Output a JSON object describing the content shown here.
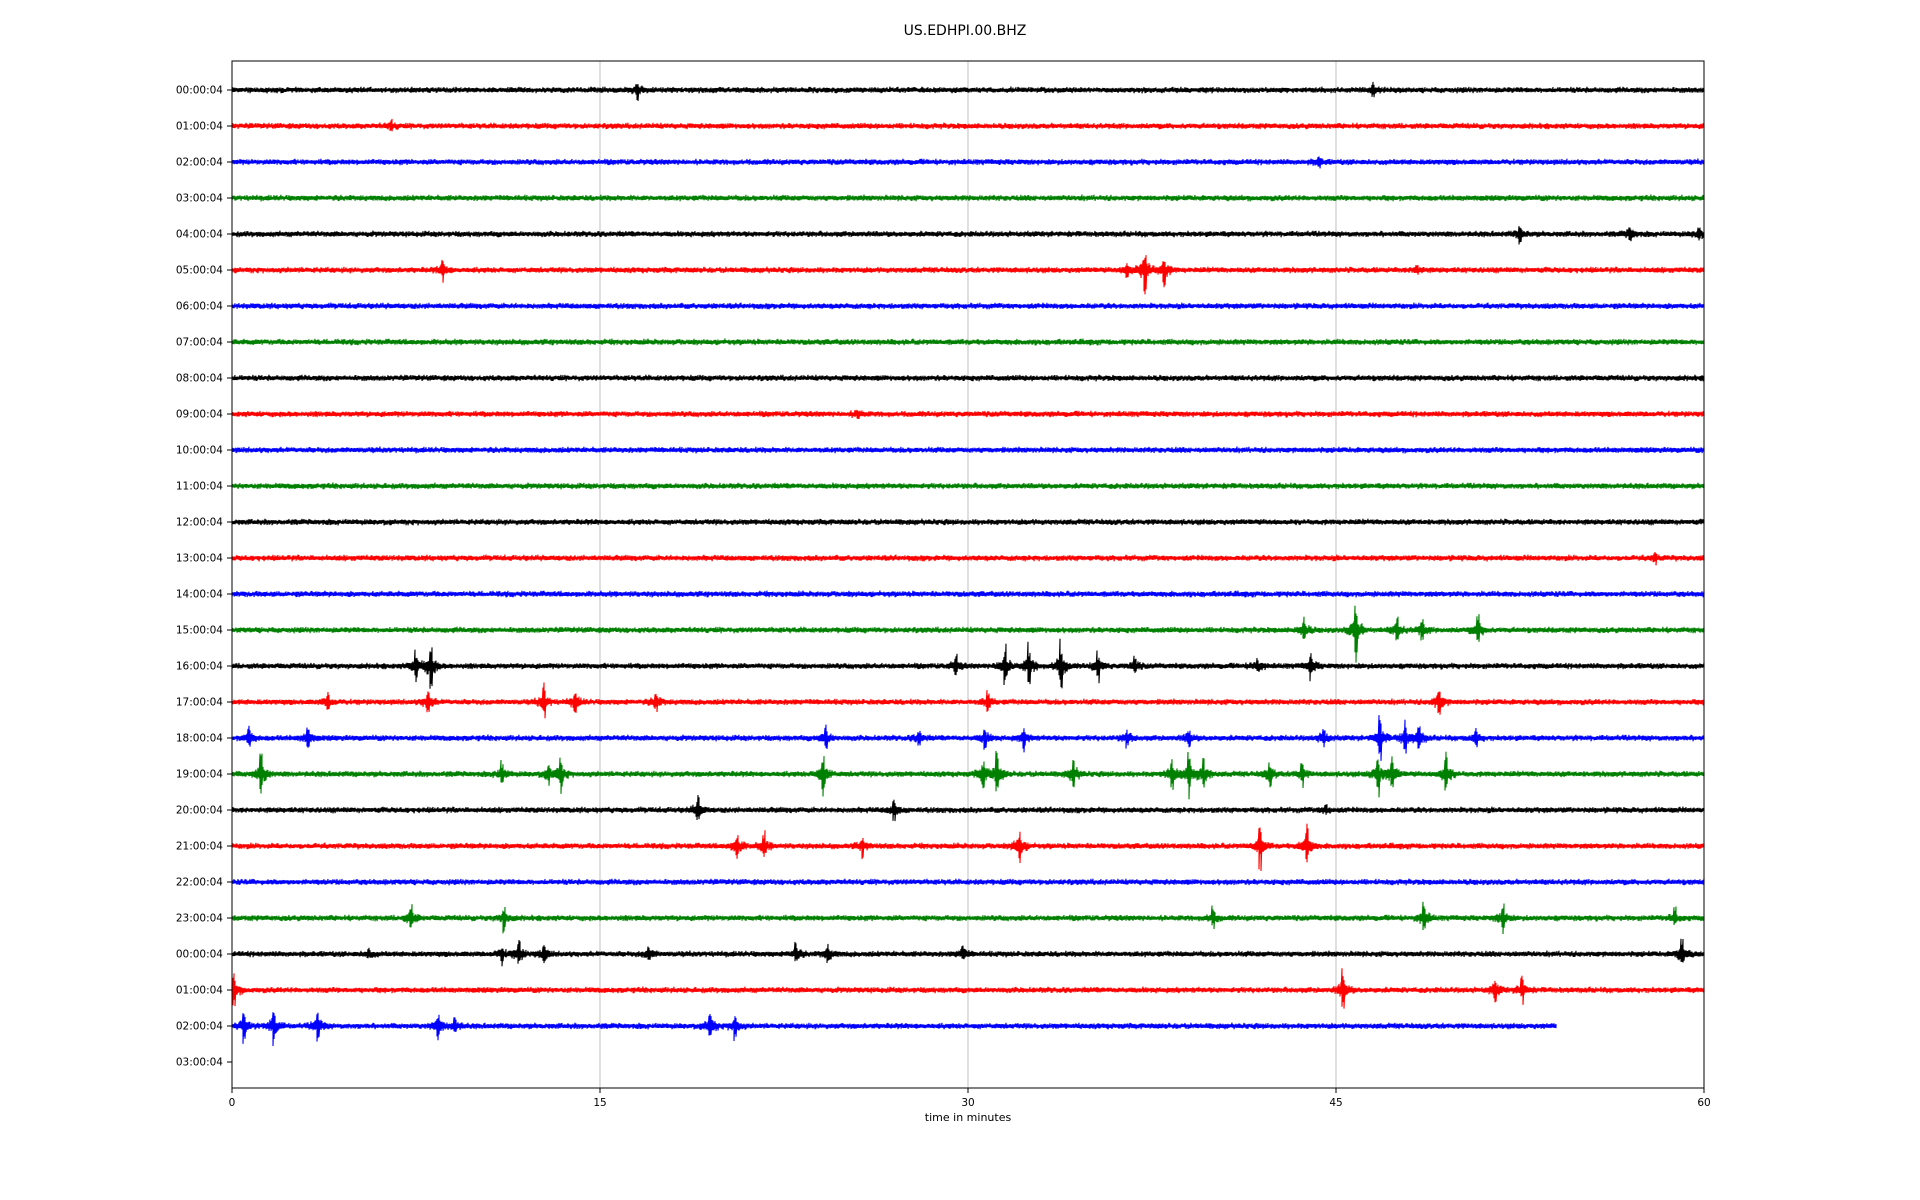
{
  "chart_data": {
    "type": "line",
    "title": "US.EDHPI.00.BHZ",
    "xlabel": "time in minutes",
    "ylabel": "",
    "xlim": [
      0,
      60
    ],
    "x_ticks": [
      "0",
      "15",
      "30",
      "45",
      "60"
    ],
    "x_tick_values": [
      0,
      15,
      30,
      45,
      60
    ],
    "grid": "vertical lines at x ticks",
    "legend": "none",
    "trace_colors": [
      "#000000",
      "#ff0000",
      "#0000ff",
      "#008000"
    ],
    "rows": [
      {
        "label": "00:00:04",
        "end_minute": 60,
        "events": [
          [
            16.5,
            0.5
          ],
          [
            46.5,
            0.3
          ]
        ]
      },
      {
        "label": "01:00:04",
        "end_minute": 60,
        "events": [
          [
            6.5,
            0.3
          ]
        ]
      },
      {
        "label": "02:00:04",
        "end_minute": 60,
        "events": [
          [
            44.3,
            0.3
          ]
        ]
      },
      {
        "label": "03:00:04",
        "end_minute": 60,
        "events": []
      },
      {
        "label": "04:00:04",
        "end_minute": 60,
        "events": [
          [
            52.5,
            0.5
          ],
          [
            57.0,
            0.5
          ],
          [
            59.8,
            0.4
          ]
        ]
      },
      {
        "label": "05:00:04",
        "end_minute": 60,
        "events": [
          [
            8.6,
            0.6
          ],
          [
            37.2,
            1.6
          ],
          [
            38.0,
            1.0
          ],
          [
            36.5,
            0.5
          ],
          [
            48.3,
            0.3
          ]
        ]
      },
      {
        "label": "06:00:04",
        "end_minute": 60,
        "events": []
      },
      {
        "label": "07:00:04",
        "end_minute": 60,
        "events": []
      },
      {
        "label": "08:00:04",
        "end_minute": 60,
        "events": []
      },
      {
        "label": "09:00:04",
        "end_minute": 60,
        "events": [
          [
            25.5,
            0.3
          ]
        ]
      },
      {
        "label": "10:00:04",
        "end_minute": 60,
        "events": []
      },
      {
        "label": "11:00:04",
        "end_minute": 60,
        "events": []
      },
      {
        "label": "12:00:04",
        "end_minute": 60,
        "events": []
      },
      {
        "label": "13:00:04",
        "end_minute": 60,
        "events": [
          [
            58.0,
            0.3
          ]
        ]
      },
      {
        "label": "14:00:04",
        "end_minute": 60,
        "events": []
      },
      {
        "label": "15:00:04",
        "end_minute": 60,
        "events": [
          [
            43.7,
            0.8
          ],
          [
            45.8,
            1.8
          ],
          [
            47.5,
            0.8
          ],
          [
            48.5,
            0.6
          ],
          [
            50.8,
            0.9
          ]
        ]
      },
      {
        "label": "16:00:04",
        "end_minute": 60,
        "events": [
          [
            7.5,
            1.0
          ],
          [
            8.1,
            1.4
          ],
          [
            29.5,
            0.6
          ],
          [
            31.5,
            1.4
          ],
          [
            32.5,
            1.2
          ],
          [
            33.8,
            1.6
          ],
          [
            35.3,
            0.8
          ],
          [
            36.8,
            0.5
          ],
          [
            41.8,
            0.6
          ],
          [
            44.0,
            0.7
          ]
        ]
      },
      {
        "label": "17:00:04",
        "end_minute": 60,
        "events": [
          [
            3.9,
            0.5
          ],
          [
            8.0,
            0.8
          ],
          [
            12.7,
            0.9
          ],
          [
            14.0,
            0.7
          ],
          [
            17.3,
            0.6
          ],
          [
            30.8,
            0.6
          ],
          [
            49.2,
            1.0
          ]
        ]
      },
      {
        "label": "18:00:04",
        "end_minute": 60,
        "events": [
          [
            0.7,
            0.6
          ],
          [
            3.1,
            0.6
          ],
          [
            24.2,
            0.7
          ],
          [
            28.0,
            0.5
          ],
          [
            30.7,
            0.6
          ],
          [
            32.3,
            0.6
          ],
          [
            36.5,
            0.5
          ],
          [
            39.0,
            0.5
          ],
          [
            44.5,
            0.6
          ],
          [
            46.8,
            1.2
          ],
          [
            47.8,
            0.9
          ],
          [
            48.4,
            0.8
          ],
          [
            50.7,
            0.5
          ]
        ]
      },
      {
        "label": "19:00:04",
        "end_minute": 60,
        "events": [
          [
            1.2,
            1.3
          ],
          [
            11.0,
            0.7
          ],
          [
            12.9,
            0.6
          ],
          [
            13.4,
            1.0
          ],
          [
            24.1,
            1.4
          ],
          [
            30.6,
            0.9
          ],
          [
            31.2,
            1.3
          ],
          [
            34.3,
            1.0
          ],
          [
            38.3,
            1.0
          ],
          [
            39.0,
            1.3
          ],
          [
            39.6,
            1.1
          ],
          [
            42.3,
            0.8
          ],
          [
            43.6,
            0.6
          ],
          [
            46.7,
            1.2
          ],
          [
            47.3,
            1.1
          ],
          [
            49.5,
            1.2
          ]
        ]
      },
      {
        "label": "20:00:04",
        "end_minute": 60,
        "events": [
          [
            19.0,
            0.8
          ],
          [
            27.0,
            0.6
          ],
          [
            44.6,
            0.3
          ]
        ]
      },
      {
        "label": "21:00:04",
        "end_minute": 60,
        "events": [
          [
            20.6,
            0.9
          ],
          [
            21.7,
            0.8
          ],
          [
            25.7,
            0.6
          ],
          [
            32.1,
            1.2
          ],
          [
            41.9,
            1.2
          ],
          [
            43.8,
            1.2
          ]
        ]
      },
      {
        "label": "22:00:04",
        "end_minute": 60,
        "events": []
      },
      {
        "label": "23:00:04",
        "end_minute": 60,
        "events": [
          [
            7.3,
            0.8
          ],
          [
            11.1,
            0.7
          ],
          [
            40.0,
            0.6
          ],
          [
            48.6,
            0.9
          ],
          [
            51.8,
            0.9
          ],
          [
            58.8,
            0.5
          ]
        ]
      },
      {
        "label": "00:00:04",
        "end_minute": 60,
        "events": [
          [
            5.6,
            0.3
          ],
          [
            11.0,
            0.5
          ],
          [
            11.7,
            0.8
          ],
          [
            12.7,
            0.6
          ],
          [
            17.0,
            0.5
          ],
          [
            23.0,
            0.6
          ],
          [
            24.3,
            0.6
          ],
          [
            29.8,
            0.5
          ],
          [
            59.1,
            1.0
          ]
        ]
      },
      {
        "label": "01:00:04",
        "end_minute": 60,
        "events": [
          [
            0.1,
            0.9
          ],
          [
            45.3,
            1.2
          ],
          [
            51.5,
            0.8
          ],
          [
            52.6,
            0.7
          ]
        ]
      },
      {
        "label": "02:00:04",
        "end_minute": 54.0,
        "events": [
          [
            0.5,
            0.9
          ],
          [
            1.7,
            1.2
          ],
          [
            3.5,
            0.9
          ],
          [
            8.4,
            0.8
          ],
          [
            9.1,
            0.5
          ],
          [
            19.5,
            0.9
          ],
          [
            20.5,
            0.7
          ]
        ]
      },
      {
        "label": "03:00:04",
        "end_minute": 0,
        "events": []
      }
    ]
  }
}
